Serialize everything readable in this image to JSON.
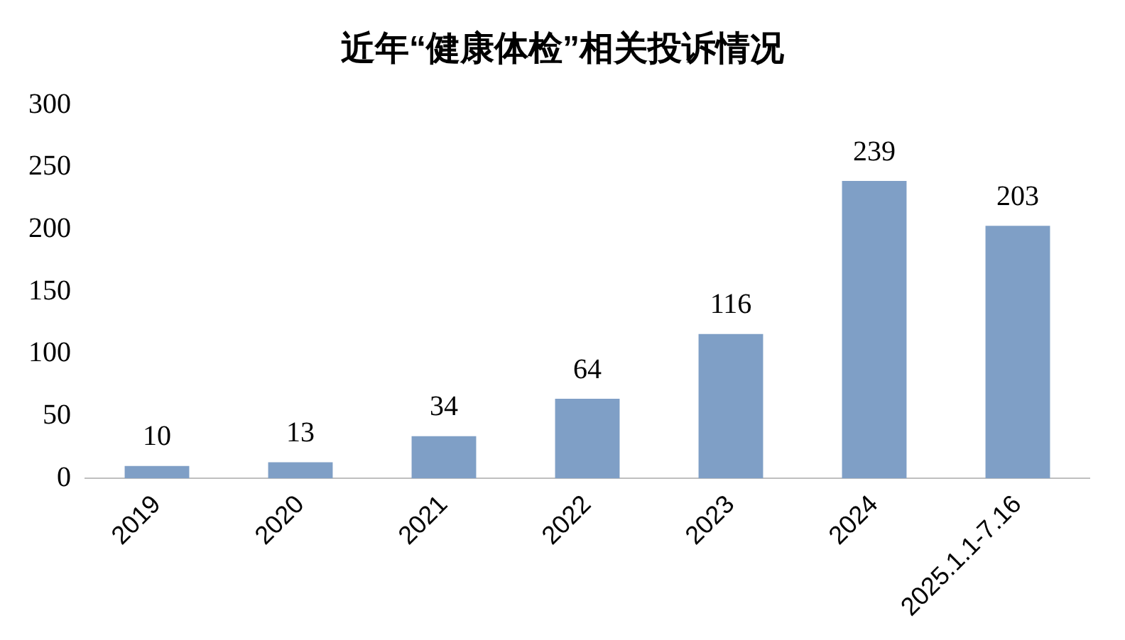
{
  "chart_data": {
    "type": "bar",
    "title": "近年“健康体检”相关投诉情况",
    "categories": [
      "2019",
      "2020",
      "2021",
      "2022",
      "2023",
      "2024",
      "2025.1.1-7.16"
    ],
    "values": [
      10,
      13,
      34,
      64,
      116,
      239,
      203
    ],
    "color": "#7f9fc6",
    "ylim": [
      0,
      300
    ],
    "yticks": [
      0,
      50,
      100,
      150,
      200,
      250,
      300
    ],
    "grid": false,
    "data_labels": true
  }
}
